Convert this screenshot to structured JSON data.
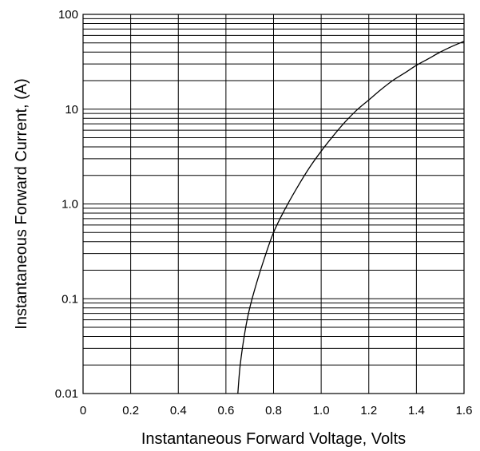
{
  "chart_data": {
    "type": "line",
    "title": "",
    "xlabel": "Instantaneous Forward Voltage, Volts",
    "ylabel": "Instantaneous Forward Current, (A)",
    "xlim": [
      0,
      1.6
    ],
    "ylim": [
      0.01,
      100
    ],
    "yscale": "log",
    "grid": true,
    "x_ticks": [
      "0",
      "0.2",
      "0.4",
      "0.6",
      "0.8",
      "1.0",
      "1.2",
      "1.4",
      "1.6"
    ],
    "y_ticks": [
      "0.01",
      "0.1",
      "1.0",
      "10",
      "100"
    ],
    "series": [
      {
        "x": [
          0.65,
          0.66,
          0.68,
          0.7,
          0.73,
          0.76,
          0.8,
          0.85,
          0.9,
          0.95,
          1.0,
          1.05,
          1.1,
          1.15,
          1.2,
          1.25,
          1.3,
          1.35,
          1.4,
          1.45,
          1.5,
          1.55,
          1.6
        ],
        "y": [
          0.01,
          0.02,
          0.045,
          0.08,
          0.15,
          0.26,
          0.5,
          0.9,
          1.5,
          2.4,
          3.6,
          5.2,
          7.3,
          9.8,
          12.5,
          16,
          20,
          24,
          29,
          34,
          40,
          46,
          52
        ]
      }
    ]
  }
}
